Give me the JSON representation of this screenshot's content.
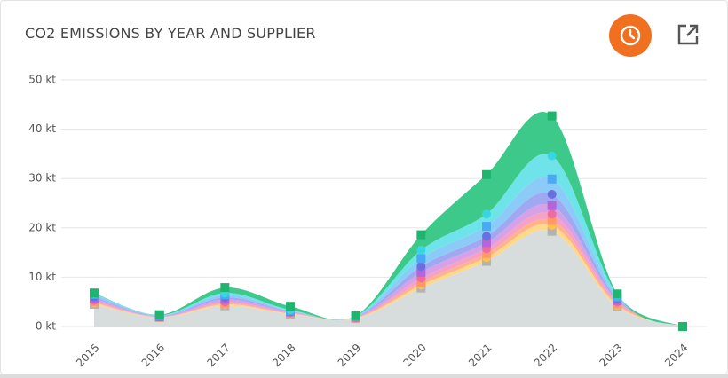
{
  "chart_data": {
    "type": "stacked-area",
    "title": "CO2 EMISSIONS BY YEAR AND SUPPLIER",
    "categories": [
      "2015",
      "2016",
      "2017",
      "2018",
      "2019",
      "2020",
      "2021",
      "2022",
      "2023",
      "2024"
    ],
    "ylim": [
      0,
      50
    ],
    "yticks": [
      {
        "value": 0,
        "label": "0 kt"
      },
      {
        "value": 10,
        "label": "10 kt"
      },
      {
        "value": 20,
        "label": "20 kt"
      },
      {
        "value": 30,
        "label": "30 kt"
      },
      {
        "value": 40,
        "label": "40 kt"
      },
      {
        "value": 50,
        "label": "50 kt"
      }
    ],
    "grid": true,
    "series": [
      {
        "color": "#d7dcdc",
        "marker": "#b3b3b3",
        "values": [
          4.5,
          1.8,
          4.2,
          2.5,
          1.6,
          7.8,
          13.2,
          19.3,
          4.0,
          0
        ]
      },
      {
        "color": "#ffd98a",
        "marker": "#ffc04d",
        "values": [
          0.3,
          0.05,
          0.3,
          0.1,
          0.1,
          0.6,
          0.8,
          1.2,
          0.3,
          0
        ]
      },
      {
        "color": "#ffb38a",
        "marker": "#ff9966",
        "values": [
          0.2,
          0.05,
          0.2,
          0.1,
          0.05,
          0.6,
          0.8,
          1.0,
          0.3,
          0
        ]
      },
      {
        "color": "#f7a1c4",
        "marker": "#f06ca0",
        "values": [
          0.3,
          0.05,
          0.3,
          0.1,
          0.05,
          0.8,
          1.0,
          1.3,
          0.4,
          0
        ]
      },
      {
        "color": "#d6a1e6",
        "marker": "#b565d9",
        "values": [
          0.4,
          0.05,
          0.5,
          0.2,
          0.1,
          1.2,
          1.2,
          1.7,
          0.3,
          0
        ]
      },
      {
        "color": "#9fa8f0",
        "marker": "#6a70e0",
        "values": [
          0.3,
          0.1,
          0.4,
          0.1,
          0.05,
          1.2,
          1.3,
          2.3,
          0.3,
          0
        ]
      },
      {
        "color": "#8ccaf7",
        "marker": "#4aa8f5",
        "values": [
          0.5,
          0.1,
          0.5,
          0.1,
          0.05,
          1.6,
          2.0,
          3.1,
          0.4,
          0
        ]
      },
      {
        "color": "#6fe3ea",
        "marker": "#38d6e0",
        "values": [
          0.2,
          0.1,
          0.4,
          0.2,
          0.1,
          1.7,
          2.5,
          4.7,
          0.4,
          0
        ]
      },
      {
        "color": "#3cc98a",
        "marker": "#1fb56f",
        "values": [
          0.1,
          0.1,
          1.1,
          0.7,
          0.1,
          3.1,
          8.0,
          8.1,
          0.2,
          0
        ]
      }
    ]
  }
}
